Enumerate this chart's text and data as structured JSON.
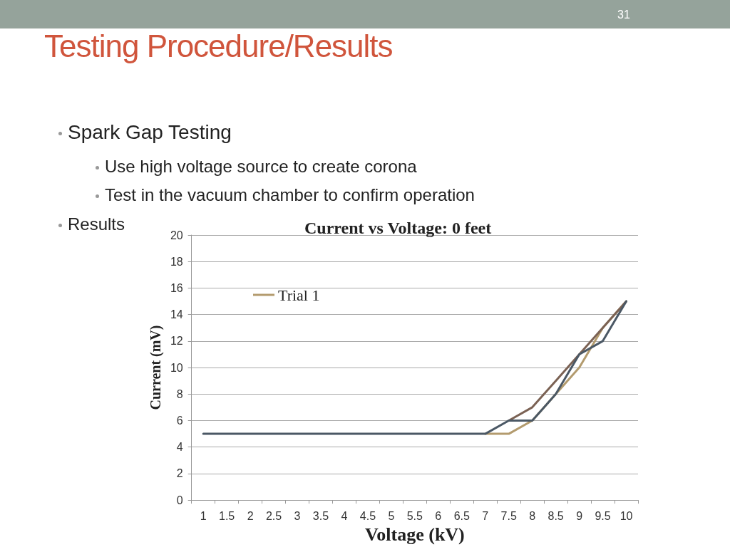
{
  "chart_data": {
    "type": "line",
    "title": "Current vs Voltage: 0 feet",
    "xlabel": "Voltage (kV)",
    "ylabel": "Current (mV)",
    "annotations": [
      "31",
      "Testing Procedure/Results",
      "Spark Gap Testing",
      "Use high voltage source to create corona",
      "Test in the vacuum chamber to confirm operation",
      "Results"
    ],
    "categories": [
      "1",
      "1.5",
      "2",
      "2.5",
      "3",
      "3.5",
      "4",
      "4.5",
      "5",
      "5.5",
      "6",
      "6.5",
      "7",
      "7.5",
      "8",
      "8.5",
      "9",
      "9.5",
      "10"
    ],
    "series": [
      {
        "name": "Trial 1",
        "color": "#b39b6e",
        "values": [
          null,
          null,
          null,
          null,
          null,
          null,
          null,
          null,
          null,
          null,
          null,
          null,
          5,
          5,
          6,
          8,
          10,
          13,
          15
        ]
      },
      {
        "color": "#7b6254",
        "values": [
          null,
          null,
          null,
          null,
          null,
          null,
          null,
          null,
          null,
          null,
          null,
          null,
          null,
          6,
          7,
          9,
          11,
          13,
          15
        ]
      },
      {
        "color": "#4b5865",
        "values": [
          5,
          5,
          5,
          5,
          5,
          5,
          5,
          5,
          5,
          5,
          5,
          5,
          5,
          6,
          6,
          8,
          11,
          12,
          15
        ]
      }
    ],
    "ylim": [
      0,
      20
    ],
    "yticks": [
      0,
      2,
      4,
      6,
      8,
      10,
      12,
      14,
      16,
      18,
      20
    ],
    "grid": "y",
    "legend": "top left",
    "marker": "none",
    "line_style": "solid"
  }
}
